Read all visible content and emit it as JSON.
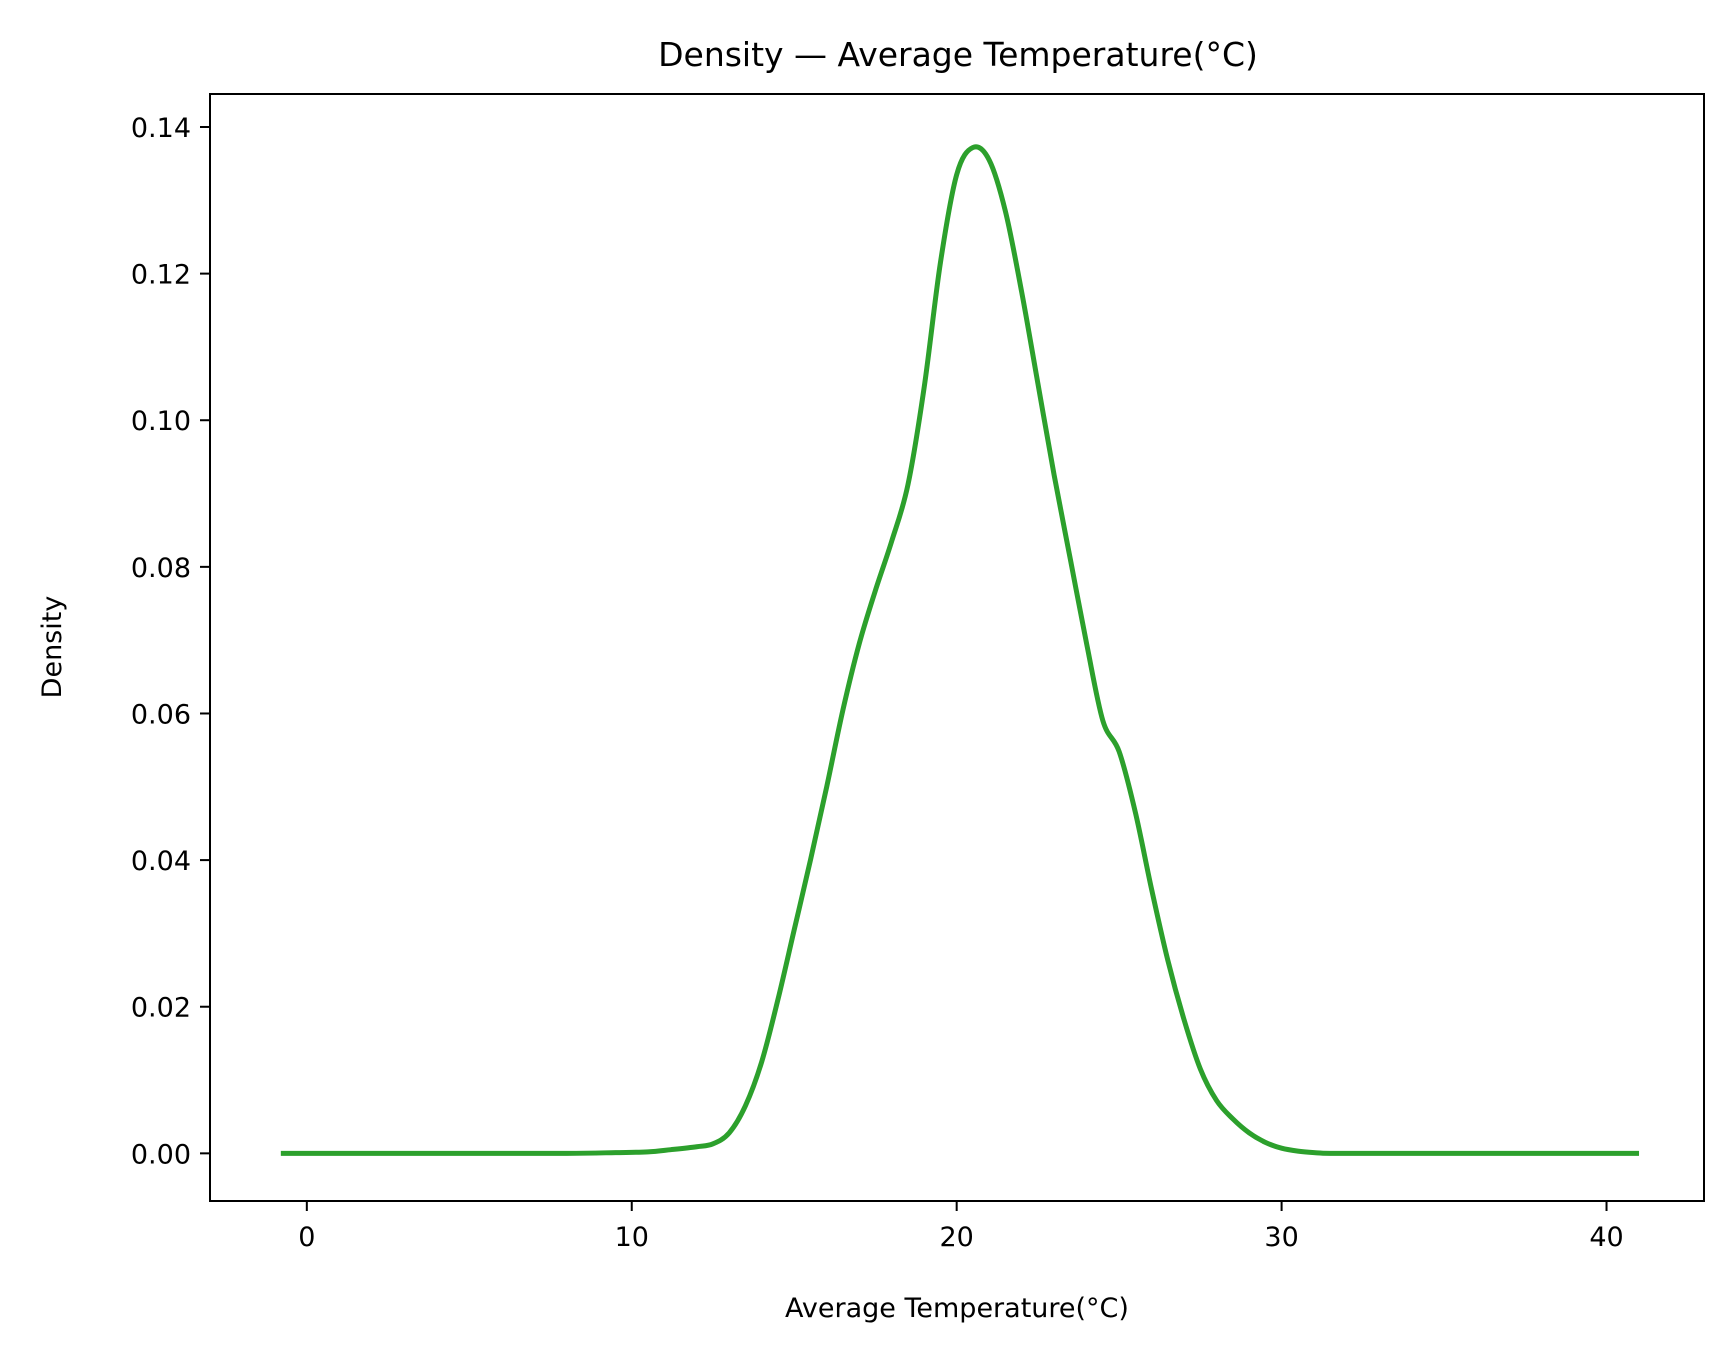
{
  "chart_data": {
    "type": "line",
    "title": "Density — Average Temperature(°C)",
    "xlabel": "Average Temperature(°C)",
    "ylabel": "Density",
    "xlim": [
      -2.98,
      43.0
    ],
    "ylim": [
      -0.0065,
      0.1445
    ],
    "x_ticks": [
      0,
      10,
      20,
      30,
      40
    ],
    "x_tick_labels": [
      "0",
      "10",
      "20",
      "30",
      "40"
    ],
    "y_ticks": [
      0.0,
      0.02,
      0.04,
      0.06,
      0.08,
      0.1,
      0.12,
      0.14
    ],
    "y_tick_labels": [
      "0.00",
      "0.02",
      "0.04",
      "0.06",
      "0.08",
      "0.10",
      "0.12",
      "0.14"
    ],
    "grid": false,
    "legend": "none",
    "series": [
      {
        "color": "#2ca02c",
        "x": [
          -0.8,
          2,
          5,
          8,
          9.5,
          10.5,
          11.2,
          12,
          12.5,
          13,
          13.5,
          14,
          14.5,
          15,
          15.5,
          16,
          16.5,
          17,
          17.5,
          18,
          18.5,
          19,
          19.5,
          20,
          20.5,
          21,
          21.5,
          22,
          22.5,
          23,
          23.5,
          24,
          24.5,
          25,
          25.5,
          26,
          26.5,
          27,
          27.5,
          28,
          28.5,
          29,
          29.5,
          30,
          30.5,
          31,
          31.5,
          33,
          36,
          39,
          41
        ],
        "y": [
          0.0,
          0.0,
          0.0,
          0.0,
          0.0001,
          0.0002,
          0.0005,
          0.0009,
          0.0013,
          0.0028,
          0.0065,
          0.0125,
          0.021,
          0.0305,
          0.04,
          0.05,
          0.0605,
          0.0695,
          0.0768,
          0.0835,
          0.0912,
          0.1045,
          0.1215,
          0.1335,
          0.1372,
          0.1355,
          0.1285,
          0.1175,
          0.105,
          0.0925,
          0.081,
          0.0695,
          0.059,
          0.0548,
          0.0465,
          0.036,
          0.0263,
          0.0182,
          0.0115,
          0.0072,
          0.0047,
          0.0028,
          0.0015,
          0.0007,
          0.0003,
          0.0001,
          0.0,
          0.0,
          0.0,
          0.0,
          0.0
        ]
      }
    ]
  }
}
